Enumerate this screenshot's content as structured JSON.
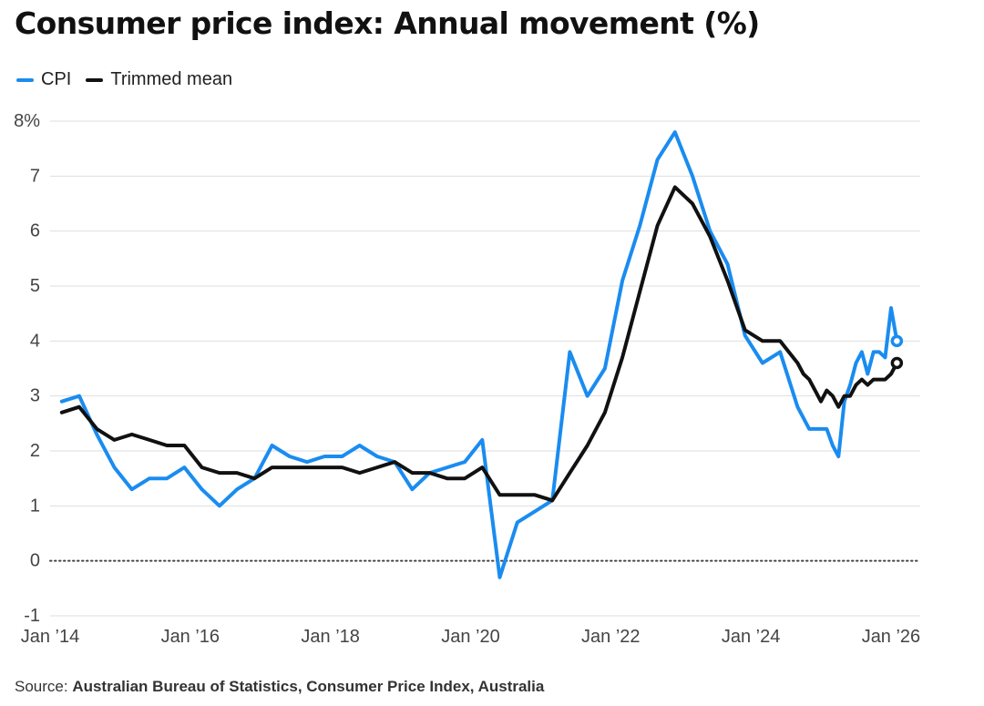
{
  "title": "Consumer price index: Annual movement (%)",
  "legend": [
    {
      "label": "CPI",
      "color": "#1a8cf0"
    },
    {
      "label": "Trimmed mean",
      "color": "#111111"
    }
  ],
  "source": {
    "prefix": "Source: ",
    "name": "Australian Bureau of Statistics, Consumer Price Index, Australia"
  },
  "chart_data": {
    "type": "line",
    "title": "Consumer price index: Annual movement (%)",
    "xlabel": "",
    "ylabel": "",
    "ylim": [
      -1,
      8
    ],
    "yticks": [
      -1,
      0,
      1,
      2,
      3,
      4,
      5,
      6,
      7,
      8
    ],
    "ytick_labels": [
      "-1",
      "0",
      "1",
      "2",
      "3",
      "4",
      "5",
      "6",
      "7",
      "8%"
    ],
    "xlim": [
      "2014-01",
      "2026-06"
    ],
    "xticks": [
      "2014-01",
      "2016-01",
      "2018-01",
      "2020-01",
      "2022-01",
      "2024-01",
      "2026-01"
    ],
    "xtick_labels": [
      "Jan ’14",
      "Jan ’16",
      "Jan ’18",
      "Jan ’20",
      "Jan ’22",
      "Jan ’24",
      "Jan ’26"
    ],
    "grid": true,
    "zero_line": "dotted",
    "legend_position": "top-left",
    "series": [
      {
        "name": "CPI",
        "color": "#1a8cf0",
        "x": [
          "2014-03",
          "2014-06",
          "2014-09",
          "2014-12",
          "2015-03",
          "2015-06",
          "2015-09",
          "2015-12",
          "2016-03",
          "2016-06",
          "2016-09",
          "2016-12",
          "2017-03",
          "2017-06",
          "2017-09",
          "2017-12",
          "2018-03",
          "2018-06",
          "2018-09",
          "2018-12",
          "2019-03",
          "2019-06",
          "2019-09",
          "2019-12",
          "2020-03",
          "2020-06",
          "2020-09",
          "2020-12",
          "2021-03",
          "2021-06",
          "2021-09",
          "2021-12",
          "2022-03",
          "2022-06",
          "2022-09",
          "2022-12",
          "2023-03",
          "2023-06",
          "2023-09",
          "2023-12",
          "2024-03",
          "2024-06",
          "2024-09",
          "2024-10",
          "2024-11",
          "2024-12",
          "2025-01",
          "2025-02",
          "2025-03",
          "2025-04",
          "2025-05",
          "2025-06",
          "2025-07",
          "2025-08",
          "2025-09",
          "2025-10",
          "2025-11",
          "2025-12",
          "2026-01",
          "2026-02"
        ],
        "y": [
          2.9,
          3.0,
          2.3,
          1.7,
          1.3,
          1.5,
          1.5,
          1.7,
          1.3,
          1.0,
          1.3,
          1.5,
          2.1,
          1.9,
          1.8,
          1.9,
          1.9,
          2.1,
          1.9,
          1.8,
          1.3,
          1.6,
          1.7,
          1.8,
          2.2,
          -0.3,
          0.7,
          0.9,
          1.1,
          3.8,
          3.0,
          3.5,
          5.1,
          6.1,
          7.3,
          7.8,
          7.0,
          6.0,
          5.4,
          4.1,
          3.6,
          3.8,
          2.8,
          2.6,
          2.4,
          2.4,
          2.4,
          2.4,
          2.1,
          1.9,
          2.9,
          3.2,
          3.6,
          3.8,
          3.4,
          3.8,
          3.8,
          3.7,
          4.6,
          4.0
        ]
      },
      {
        "name": "Trimmed mean",
        "color": "#111111",
        "x": [
          "2014-03",
          "2014-06",
          "2014-09",
          "2014-12",
          "2015-03",
          "2015-06",
          "2015-09",
          "2015-12",
          "2016-03",
          "2016-06",
          "2016-09",
          "2016-12",
          "2017-03",
          "2017-06",
          "2017-09",
          "2017-12",
          "2018-03",
          "2018-06",
          "2018-09",
          "2018-12",
          "2019-03",
          "2019-06",
          "2019-09",
          "2019-12",
          "2020-03",
          "2020-06",
          "2020-09",
          "2020-12",
          "2021-03",
          "2021-06",
          "2021-09",
          "2021-12",
          "2022-03",
          "2022-06",
          "2022-09",
          "2022-12",
          "2023-03",
          "2023-06",
          "2023-09",
          "2023-12",
          "2024-03",
          "2024-06",
          "2024-09",
          "2024-10",
          "2024-11",
          "2024-12",
          "2025-01",
          "2025-02",
          "2025-03",
          "2025-04",
          "2025-05",
          "2025-06",
          "2025-07",
          "2025-08",
          "2025-09",
          "2025-10",
          "2025-11",
          "2025-12",
          "2026-01",
          "2026-02"
        ],
        "y": [
          2.7,
          2.8,
          2.4,
          2.2,
          2.3,
          2.2,
          2.1,
          2.1,
          1.7,
          1.6,
          1.6,
          1.5,
          1.7,
          1.7,
          1.7,
          1.7,
          1.7,
          1.6,
          1.7,
          1.8,
          1.6,
          1.6,
          1.5,
          1.5,
          1.7,
          1.2,
          1.2,
          1.2,
          1.1,
          1.6,
          2.1,
          2.7,
          3.7,
          4.9,
          6.1,
          6.8,
          6.5,
          5.9,
          5.1,
          4.2,
          4.0,
          4.0,
          3.6,
          3.4,
          3.3,
          3.1,
          2.9,
          3.1,
          3.0,
          2.8,
          3.0,
          3.0,
          3.2,
          3.3,
          3.2,
          3.3,
          3.3,
          3.3,
          3.4,
          3.6
        ]
      }
    ],
    "end_markers": true
  }
}
